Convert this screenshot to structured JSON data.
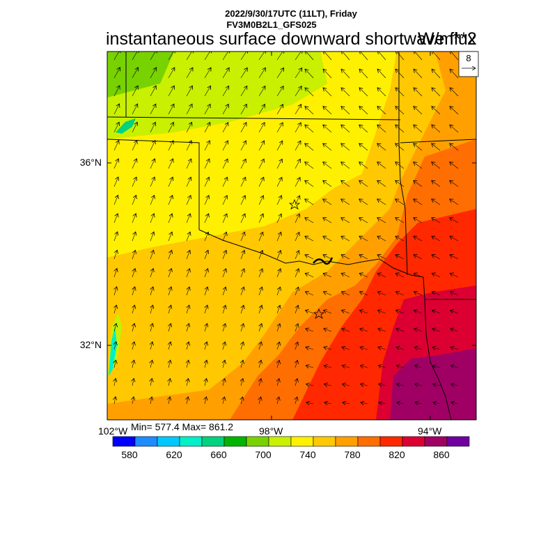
{
  "header": {
    "datetime": "2022/9/30/17UTC (11LT), Friday",
    "model": "FV3M0B2L1_GFS025",
    "title": "instantaneous surface downward shortwave flux",
    "units": "W/m**2"
  },
  "vector_reference": {
    "value": "8"
  },
  "axes": {
    "lat_labels": [
      "36°N",
      "32°N"
    ],
    "lon_labels": [
      "102°W",
      "98°W",
      "94°W"
    ]
  },
  "stats": {
    "text": "Min= 577.4 Max= 861.2",
    "min": 577.4,
    "max": 861.2
  },
  "colorbar": {
    "colors": [
      "#0000ff",
      "#1e8cff",
      "#00c8ff",
      "#00f0c8",
      "#00d27d",
      "#00b400",
      "#78d200",
      "#c8f000",
      "#fff000",
      "#ffc800",
      "#ffa000",
      "#ff6e00",
      "#ff2800",
      "#dc0032",
      "#a00064",
      "#6e00a0"
    ],
    "labels": [
      "580",
      "620",
      "660",
      "700",
      "740",
      "780",
      "820",
      "860"
    ]
  },
  "chart_data": {
    "type": "heatmap",
    "title": "instantaneous surface downward shortwave flux",
    "units": "W/m**2",
    "lat_ticks": [
      "36°N",
      "32°N"
    ],
    "lon_ticks": [
      "102°W",
      "98°W",
      "94°W"
    ],
    "value_range": [
      577.4,
      861.2
    ],
    "colorbar_levels": [
      580,
      620,
      660,
      700,
      740,
      780,
      820,
      860
    ],
    "vector_reference": 8
  }
}
